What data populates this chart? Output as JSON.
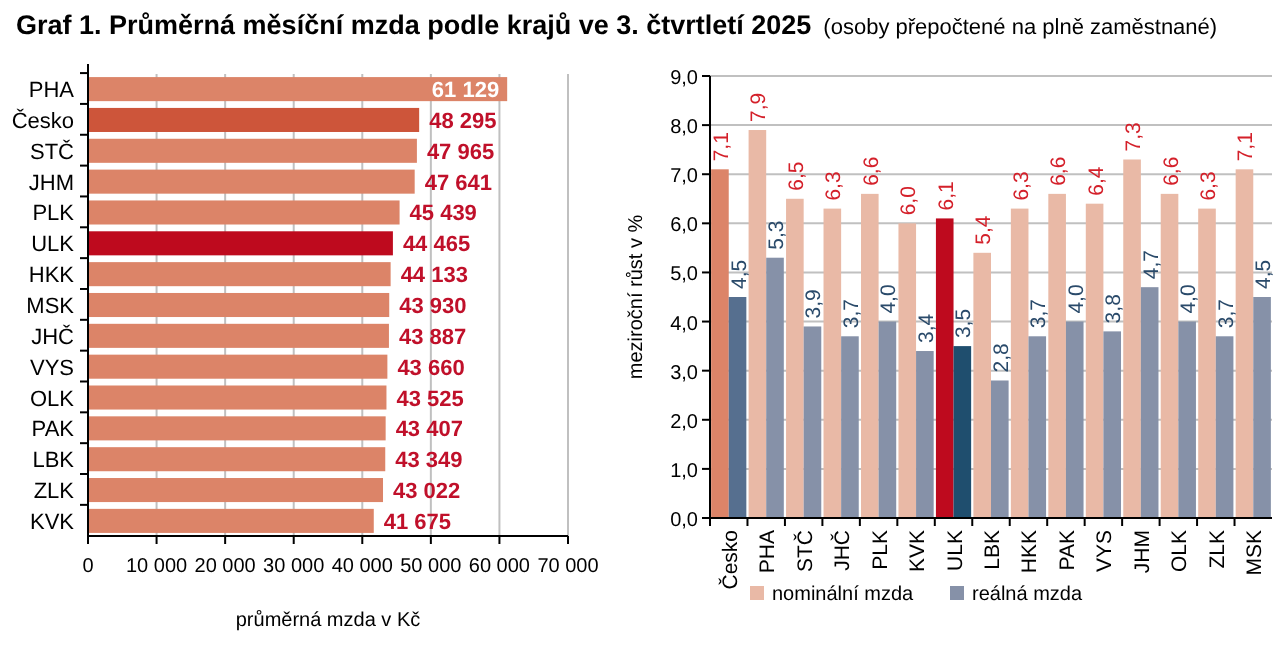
{
  "chart_data": [
    {
      "type": "other",
      "title": "Graf 1. Průměrná měsíční mzda podle krajů ve 3. čtvrtletí 2025",
      "subtitle": "(osoby přepočtené na plně zaměstnané)"
    },
    {
      "type": "bar",
      "orientation": "horizontal",
      "xlabel": "průměrná mzda v Kč",
      "categories": [
        "PHA",
        "Česko",
        "STČ",
        "JHM",
        "PLK",
        "ULK",
        "HKK",
        "MSK",
        "JHČ",
        "VYS",
        "OLK",
        "PAK",
        "LBK",
        "ZLK",
        "KVK"
      ],
      "values": [
        61129,
        48295,
        47965,
        47641,
        45439,
        44465,
        44133,
        43930,
        43887,
        43660,
        43525,
        43407,
        43349,
        43022,
        41675
      ],
      "value_labels": [
        "61 129",
        "48 295",
        "47 965",
        "47 641",
        "45 439",
        "44 465",
        "44 133",
        "43 930",
        "43 887",
        "43 660",
        "43 525",
        "43 407",
        "43 349",
        "43 022",
        "41 675"
      ],
      "colors": [
        "#dc8468",
        "#cd553a",
        "#dc8468",
        "#dc8468",
        "#dc8468",
        "#be0a1e",
        "#dc8468",
        "#dc8468",
        "#dc8468",
        "#dc8468",
        "#dc8468",
        "#dc8468",
        "#dc8468",
        "#dc8468",
        "#dc8468"
      ],
      "xlim": [
        0,
        70000
      ],
      "xticks": [
        0,
        {
          "value": 10000,
          "label": "10 000"
        },
        {
          "value": 20000,
          "label": "20 000"
        },
        {
          "value": 30000,
          "label": "30 000"
        },
        {
          "value": 40000,
          "label": "40 000"
        },
        {
          "value": 50000,
          "label": "50 000"
        },
        {
          "value": 60000,
          "label": "60 000"
        },
        {
          "value": 70000,
          "label": "70 000"
        }
      ],
      "grid": "x"
    },
    {
      "type": "bar",
      "ylabel": "meziroční růst v %",
      "legend": "bottom",
      "grid": "y",
      "categories": [
        "Česko",
        "PHA",
        "STČ",
        "JHČ",
        "PLK",
        "KVK",
        "ULK",
        "LBK",
        "HKK",
        "PAK",
        "VYS",
        "JHM",
        "OLK",
        "ZLK",
        "MSK"
      ],
      "series": [
        {
          "name": "nominální mzda",
          "color": "#e9b9a6",
          "values": [
            7.1,
            7.9,
            6.5,
            6.3,
            6.6,
            6.0,
            6.1,
            5.4,
            6.3,
            6.6,
            6.4,
            7.3,
            6.6,
            6.3,
            7.1
          ],
          "value_labels": [
            "7,1",
            "7,9",
            "6,5",
            "6,3",
            "6,6",
            "6,0",
            "6,1",
            "5,4",
            "6,3",
            "6,6",
            "6,4",
            "7,3",
            "6,6",
            "6,3",
            "7,1"
          ],
          "colors": [
            "#dc8468",
            "#e9b9a6",
            "#e9b9a6",
            "#e9b9a6",
            "#e9b9a6",
            "#e9b9a6",
            "#be0a1e",
            "#e9b9a6",
            "#e9b9a6",
            "#e9b9a6",
            "#e9b9a6",
            "#e9b9a6",
            "#e9b9a6",
            "#e9b9a6",
            "#e9b9a6"
          ]
        },
        {
          "name": "reálná mzda",
          "color": "#8691a8",
          "values": [
            4.5,
            5.3,
            3.9,
            3.7,
            4.0,
            3.4,
            3.5,
            2.8,
            3.7,
            4.0,
            3.8,
            4.7,
            4.0,
            3.7,
            4.5
          ],
          "value_labels": [
            "4,5",
            "5,3",
            "3,9",
            "3,7",
            "4,0",
            "3,4",
            "3,5",
            "2,8",
            "3,7",
            "4,0",
            "3,8",
            "4,7",
            "4,0",
            "3,7",
            "4,5"
          ],
          "colors": [
            "#566f8f",
            "#8691a8",
            "#8691a8",
            "#8691a8",
            "#8691a8",
            "#8691a8",
            "#1f4e6e",
            "#8691a8",
            "#8691a8",
            "#8691a8",
            "#8691a8",
            "#8691a8",
            "#8691a8",
            "#8691a8",
            "#8691a8"
          ]
        }
      ],
      "ylim": [
        0,
        9
      ],
      "yticks": [
        {
          "value": 0,
          "label": "0,0"
        },
        {
          "value": 1,
          "label": "1,0"
        },
        {
          "value": 2,
          "label": "2,0"
        },
        {
          "value": 3,
          "label": "3,0"
        },
        {
          "value": 4,
          "label": "4,0"
        },
        {
          "value": 5,
          "label": "5,0"
        },
        {
          "value": 6,
          "label": "6,0"
        },
        {
          "value": 7,
          "label": "7,0"
        },
        {
          "value": 8,
          "label": "8,0"
        },
        {
          "value": 9,
          "label": "9,0"
        }
      ]
    }
  ]
}
